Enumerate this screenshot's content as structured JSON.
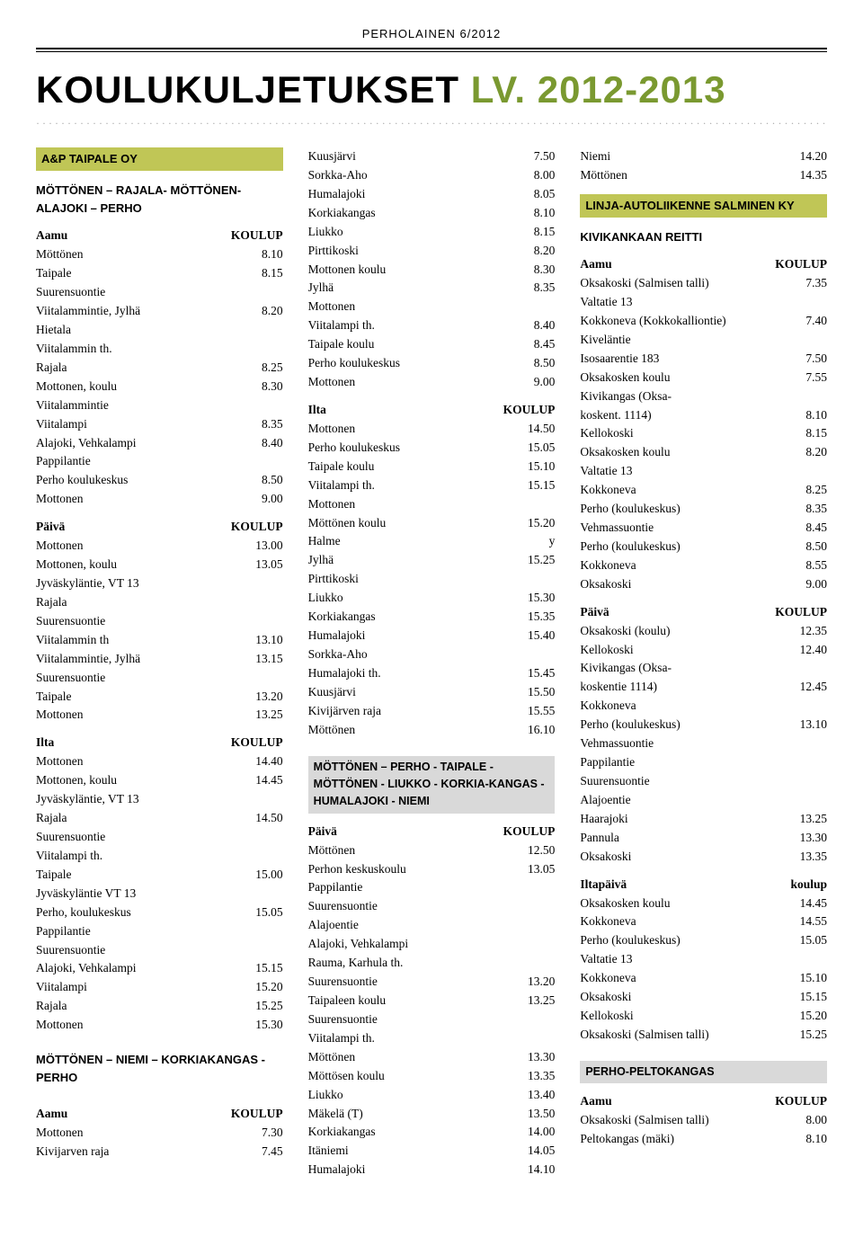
{
  "publication": "PERHOLAINEN  6/2012",
  "title_a": "KOULUKULJETUKSET ",
  "title_b": "LV. 2012-2013",
  "col1": {
    "header": "A&P TAIPALE OY",
    "groups": [
      {
        "type": "route",
        "text": "MÖTTÖNEN – RAJALA- MÖTTÖNEN- ALAJOKI – PERHO"
      },
      {
        "type": "boldrow",
        "l": "Aamu",
        "r": "KOULUP"
      },
      {
        "type": "rows",
        "rows": [
          [
            "Möttönen",
            "8.10"
          ],
          [
            "Taipale",
            "8.15"
          ],
          [
            "Suurensuontie",
            ""
          ],
          [
            "Viitalammintie, Jylhä",
            "8.20"
          ],
          [
            "Hietala",
            ""
          ],
          [
            "Viitalammin th.",
            ""
          ],
          [
            "Rajala",
            "8.25"
          ],
          [
            "Mottonen, koulu",
            "8.30"
          ],
          [
            "Viitalammintie",
            ""
          ],
          [
            "Viitalampi",
            "8.35"
          ],
          [
            "Alajoki, Vehkalampi",
            "8.40"
          ],
          [
            "Pappilantie",
            ""
          ],
          [
            "Perho koulukeskus",
            "8.50"
          ],
          [
            "Mottonen",
            "9.00"
          ]
        ]
      },
      {
        "type": "spacer"
      },
      {
        "type": "boldrow",
        "l": "Päivä",
        "r": "KOULUP"
      },
      {
        "type": "rows",
        "rows": [
          [
            "Mottonen",
            "13.00"
          ],
          [
            "Mottonen, koulu",
            "13.05"
          ],
          [
            "Jyväskyläntie, VT 13",
            ""
          ],
          [
            "Rajala",
            ""
          ],
          [
            "Suurensuontie",
            ""
          ],
          [
            "Viitalammin th",
            "13.10"
          ],
          [
            "Viitalammintie, Jylhä",
            "13.15"
          ],
          [
            "Suurensuontie",
            ""
          ],
          [
            "Taipale",
            "13.20"
          ],
          [
            "Mottonen",
            "13.25"
          ]
        ]
      },
      {
        "type": "spacer"
      },
      {
        "type": "boldrow",
        "l": "Ilta",
        "r": "KOULUP"
      },
      {
        "type": "rows",
        "rows": [
          [
            "Mottonen",
            "14.40"
          ],
          [
            "Mottonen, koulu",
            "14.45"
          ],
          [
            "Jyväskyläntie, VT 13",
            ""
          ],
          [
            "Rajala",
            "14.50"
          ],
          [
            "Suurensuontie",
            ""
          ],
          [
            "Viitalampi th.",
            ""
          ],
          [
            "Taipale",
            "15.00"
          ],
          [
            "Jyväskyläntie VT 13",
            ""
          ],
          [
            "Perho, koulukeskus",
            "15.05"
          ],
          [
            "Pappilantie",
            ""
          ],
          [
            "Suurensuontie",
            ""
          ],
          [
            "Alajoki, Vehkalampi",
            "15.15"
          ],
          [
            "Viitalampi",
            "15.20"
          ],
          [
            "Rajala",
            "15.25"
          ],
          [
            "Mottonen",
            "15.30"
          ]
        ]
      },
      {
        "type": "spacer"
      },
      {
        "type": "route",
        "text": "MÖTTÖNEN – NIEMI – KORKIAKANGAS - PERHO"
      },
      {
        "type": "spacer"
      },
      {
        "type": "boldrow",
        "l": "Aamu",
        "r": "KOULUP"
      },
      {
        "type": "rows",
        "rows": [
          [
            "Mottonen",
            "7.30"
          ],
          [
            "Kivijarven raja",
            "7.45"
          ]
        ]
      }
    ]
  },
  "col2": {
    "groups": [
      {
        "type": "rows",
        "rows": [
          [
            "Kuusjärvi",
            "7.50"
          ],
          [
            "Sorkka-Aho",
            "8.00"
          ],
          [
            "Humalajoki",
            "8.05"
          ],
          [
            "Korkiakangas",
            "8.10"
          ],
          [
            "Liukko",
            "8.15"
          ],
          [
            "Pirttikoski",
            "8.20"
          ],
          [
            "Mottonen koulu",
            "8.30"
          ],
          [
            "Jylhä",
            "8.35"
          ],
          [
            "Mottonen",
            ""
          ],
          [
            "Viitalampi th.",
            "8.40"
          ],
          [
            "Taipale koulu",
            "8.45"
          ],
          [
            "Perho koulukeskus",
            "8.50"
          ],
          [
            "Mottonen",
            "9.00"
          ]
        ]
      },
      {
        "type": "spacer"
      },
      {
        "type": "boldrow",
        "l": "Ilta",
        "r": "KOULUP"
      },
      {
        "type": "rows",
        "rows": [
          [
            "Mottonen",
            "14.50"
          ],
          [
            "Perho koulukeskus",
            "15.05"
          ],
          [
            "Taipale koulu",
            "15.10"
          ],
          [
            "Viitalampi th.",
            "15.15"
          ],
          [
            "Mottonen",
            ""
          ],
          [
            "Möttönen koulu",
            "15.20"
          ],
          [
            "Halme",
            "y"
          ],
          [
            "Jylhä",
            "15.25"
          ],
          [
            "Pirttikoski",
            ""
          ],
          [
            "Liukko",
            "15.30"
          ],
          [
            "Korkiakangas",
            "15.35"
          ],
          [
            "Humalajoki",
            "15.40"
          ],
          [
            "Sorkka-Aho",
            ""
          ],
          [
            "Humalajoki th.",
            "15.45"
          ],
          [
            "Kuusjärvi",
            "15.50"
          ],
          [
            "Kivijärven raja",
            "15.55"
          ],
          [
            "Möttönen",
            "16.10"
          ]
        ]
      },
      {
        "type": "spacer"
      },
      {
        "type": "grey",
        "text": "MÖTTÖNEN – PERHO - TAIPALE - MÖTTÖNEN - LIUKKO - KORKIA-KANGAS - HUMALAJOKI - NIEMI"
      },
      {
        "type": "boldrow",
        "l": "Päivä",
        "r": "KOULUP"
      },
      {
        "type": "rows",
        "rows": [
          [
            "Möttönen",
            "12.50"
          ],
          [
            "Perhon keskuskoulu",
            "13.05"
          ],
          [
            "Pappilantie",
            ""
          ],
          [
            "Suurensuontie",
            ""
          ],
          [
            "Alajoentie",
            ""
          ],
          [
            "Alajoki, Vehkalampi",
            ""
          ],
          [
            "Rauma, Karhula th.",
            ""
          ],
          [
            "Suurensuontie",
            "13.20"
          ],
          [
            "Taipaleen koulu",
            "13.25"
          ],
          [
            "Suurensuontie",
            ""
          ],
          [
            "Viitalampi th.",
            ""
          ],
          [
            "Möttönen",
            "13.30"
          ],
          [
            "Möttösen koulu",
            "13.35"
          ],
          [
            "Liukko",
            "13.40"
          ],
          [
            "Mäkelä (T)",
            "13.50"
          ],
          [
            "Korkiakangas",
            "14.00"
          ],
          [
            "Itäniemi",
            "14.05"
          ],
          [
            "Humalajoki",
            "14.10"
          ]
        ]
      }
    ]
  },
  "col3": {
    "top": [
      [
        "Niemi",
        "14.20"
      ],
      [
        "Möttönen",
        "14.35"
      ]
    ],
    "header": "LINJA-AUTOLIIKENNE SALMINEN KY",
    "sub": "KIVIKANKAAN REITTI",
    "groups": [
      {
        "type": "boldrow",
        "l": "Aamu",
        "r": "KOULUP"
      },
      {
        "type": "rows",
        "rows": [
          [
            "Oksakoski (Salmisen talli)",
            "7.35"
          ],
          [
            "Valtatie 13",
            ""
          ],
          [
            "Kokkoneva (Kokkokalliontie)",
            "7.40"
          ],
          [
            "Kiveläntie",
            ""
          ],
          [
            "Isosaarentie 183",
            "7.50"
          ],
          [
            "Oksakosken koulu",
            "7.55"
          ],
          [
            "Kivikangas (Oksa-",
            ""
          ],
          [
            "koskent. 1114)",
            "8.10"
          ],
          [
            "Kellokoski",
            "8.15"
          ],
          [
            "Oksakosken koulu",
            "8.20"
          ],
          [
            "Valtatie 13",
            ""
          ],
          [
            "Kokkoneva",
            "8.25"
          ],
          [
            "Perho (koulukeskus)",
            "8.35"
          ],
          [
            "Vehmassuontie",
            "8.45"
          ],
          [
            "Perho (koulukeskus)",
            "8.50"
          ],
          [
            "Kokkoneva",
            "8.55"
          ],
          [
            "Oksakoski",
            "9.00"
          ]
        ]
      },
      {
        "type": "spacer"
      },
      {
        "type": "boldrow",
        "l": "Päivä",
        "r": "KOULUP"
      },
      {
        "type": "rows",
        "rows": [
          [
            "Oksakoski (koulu)",
            "12.35"
          ],
          [
            "Kellokoski",
            "12.40"
          ],
          [
            "Kivikangas (Oksa-",
            ""
          ],
          [
            "koskentie 1114)",
            "12.45"
          ],
          [
            "Kokkoneva",
            ""
          ],
          [
            "Perho (koulukeskus)",
            "13.10"
          ],
          [
            "Vehmassuontie",
            ""
          ],
          [
            "Pappilantie",
            ""
          ],
          [
            "Suurensuontie",
            ""
          ],
          [
            "Alajoentie",
            ""
          ],
          [
            "Haarajoki",
            "13.25"
          ],
          [
            "Pannula",
            "13.30"
          ],
          [
            "Oksakoski",
            "13.35"
          ]
        ]
      },
      {
        "type": "spacer"
      },
      {
        "type": "boldrow",
        "l": "Iltapäivä",
        "r": "koulup"
      },
      {
        "type": "rows",
        "rows": [
          [
            "Oksakosken koulu",
            "14.45"
          ],
          [
            "Kokkoneva",
            "14.55"
          ],
          [
            "Perho (koulukeskus)",
            "15.05"
          ],
          [
            "Valtatie 13",
            ""
          ],
          [
            "Kokkoneva",
            "15.10"
          ],
          [
            "Oksakoski",
            "15.15"
          ],
          [
            "Kellokoski",
            "15.20"
          ],
          [
            "Oksakoski (Salmisen talli)",
            "15.25"
          ]
        ]
      },
      {
        "type": "spacer"
      },
      {
        "type": "grey",
        "text": "PERHO-PELTOKANGAS"
      },
      {
        "type": "boldrow",
        "l": "Aamu",
        "r": "KOULUP"
      },
      {
        "type": "rows",
        "rows": [
          [
            "Oksakoski (Salmisen talli)",
            "8.00"
          ],
          [
            "Peltokangas (mäki)",
            "8.10"
          ]
        ]
      }
    ]
  }
}
